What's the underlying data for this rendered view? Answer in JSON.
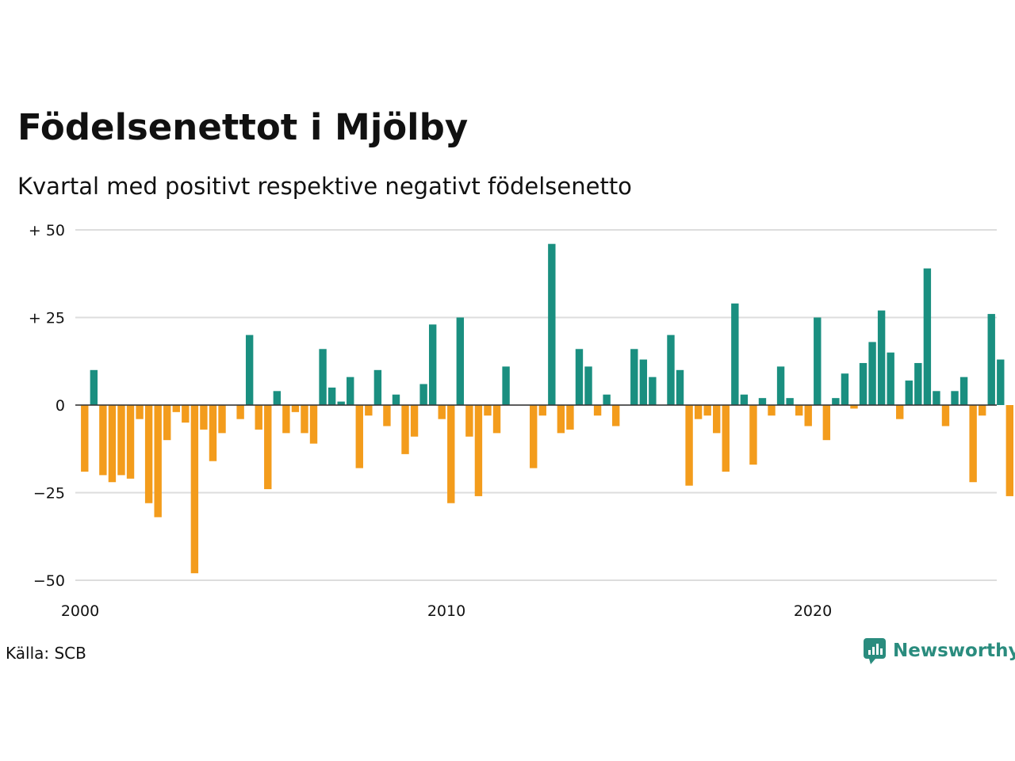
{
  "title": "Födelsenettot i Mjölby",
  "subtitle": "Kvartal med positivt respektive negativt födelsenetto",
  "source": "Källa: SCB",
  "brand": {
    "name": "Newsworthy",
    "icon": "newsworthy-logo-icon"
  },
  "colors": {
    "positive": "#1a8f80",
    "negative": "#f39c1c",
    "grid": "#dddddd",
    "axis": "#333333"
  },
  "chart_data": {
    "type": "bar",
    "x_start": "2000 Q1",
    "x_interval": "quarter",
    "ylim": [
      -50,
      50
    ],
    "y_ticks": [
      {
        "value": 50,
        "label": "+ 50"
      },
      {
        "value": 25,
        "label": "+ 25"
      },
      {
        "value": 0,
        "label": "0"
      },
      {
        "value": -25,
        "label": "−25"
      },
      {
        "value": -50,
        "label": "−50"
      }
    ],
    "x_ticks": [
      {
        "year": 2000,
        "label": "2000"
      },
      {
        "year": 2010,
        "label": "2010"
      },
      {
        "year": 2020,
        "label": "2020"
      }
    ],
    "grid": true,
    "values": [
      -19,
      10,
      -20,
      -22,
      -20,
      -21,
      -4,
      -28,
      -32,
      -10,
      -2,
      -5,
      -48,
      -7,
      -16,
      -8,
      0,
      -4,
      20,
      -7,
      -24,
      4,
      -8,
      -2,
      -8,
      -11,
      16,
      5,
      1,
      8,
      -18,
      -3,
      10,
      -6,
      3,
      -14,
      -9,
      6,
      23,
      -4,
      -28,
      25,
      -9,
      -26,
      -3,
      -8,
      11,
      0,
      0,
      -18,
      -3,
      46,
      -8,
      -7,
      16,
      11,
      -3,
      3,
      -6,
      0,
      16,
      13,
      8,
      0,
      20,
      10,
      -23,
      -4,
      -3,
      -8,
      -19,
      29,
      3,
      -17,
      2,
      -3,
      11,
      2,
      -3,
      -6,
      25,
      -10,
      2,
      9,
      -1,
      12,
      18,
      27,
      15,
      -4,
      7,
      12,
      39,
      4,
      -6,
      4,
      8,
      -22,
      -3,
      26,
      13,
      -26
    ]
  }
}
